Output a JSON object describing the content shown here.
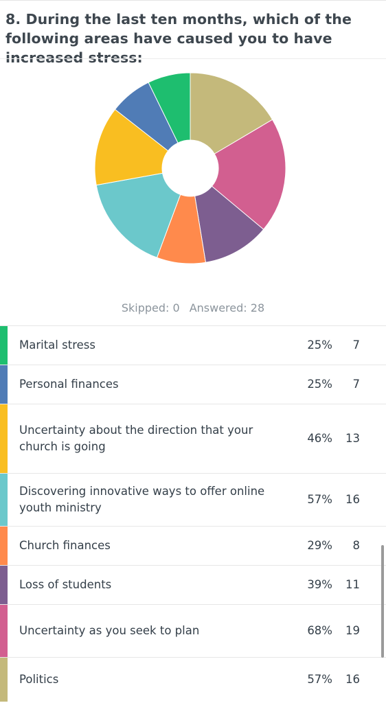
{
  "question": {
    "title": "8. During the last ten months, which of the following areas have caused you to have increased stress:"
  },
  "summary": {
    "skipped": "Skipped: 0",
    "answered": "Answered: 28"
  },
  "chart_data": {
    "type": "pie",
    "donut": true,
    "categories": [
      "Marital stress",
      "Personal finances",
      "Uncertainty about the direction that your church is going",
      "Discovering innovative ways to offer online youth ministry",
      "Church finances",
      "Loss of students",
      "Uncertainty as you seek to plan",
      "Politics"
    ],
    "values": [
      7,
      7,
      13,
      16,
      8,
      11,
      19,
      16
    ],
    "percents": [
      "25%",
      "25%",
      "46%",
      "57%",
      "29%",
      "39%",
      "68%",
      "57%"
    ],
    "colors": [
      "#1ebe6f",
      "#507cb6",
      "#f9be21",
      "#6bc8cb",
      "#ff8a4c",
      "#7d5e90",
      "#d25f90",
      "#c4b97b"
    ],
    "slice_order": [
      7,
      6,
      5,
      4,
      3,
      2,
      1,
      0
    ],
    "start_angle_deg": 0,
    "direction": "clockwise",
    "legend": "table-below"
  },
  "results": [
    {
      "label": "Marital stress",
      "pct": "25%",
      "count": "7",
      "color": "#1ebe6f"
    },
    {
      "label": "Personal finances",
      "pct": "25%",
      "count": "7",
      "color": "#507cb6"
    },
    {
      "label": "Uncertainty about the direction that your church is going",
      "pct": "46%",
      "count": "13",
      "color": "#f9be21"
    },
    {
      "label": "Discovering innovative ways to offer online youth ministry",
      "pct": "57%",
      "count": "16",
      "color": "#6bc8cb"
    },
    {
      "label": "Church finances",
      "pct": "29%",
      "count": "8",
      "color": "#ff8a4c"
    },
    {
      "label": "Loss of students",
      "pct": "39%",
      "count": "11",
      "color": "#7d5e90"
    },
    {
      "label": "Uncertainty as you seek to plan",
      "pct": "68%",
      "count": "19",
      "color": "#d25f90"
    },
    {
      "label": "Politics",
      "pct": "57%",
      "count": "16",
      "color": "#c4b97b"
    }
  ]
}
